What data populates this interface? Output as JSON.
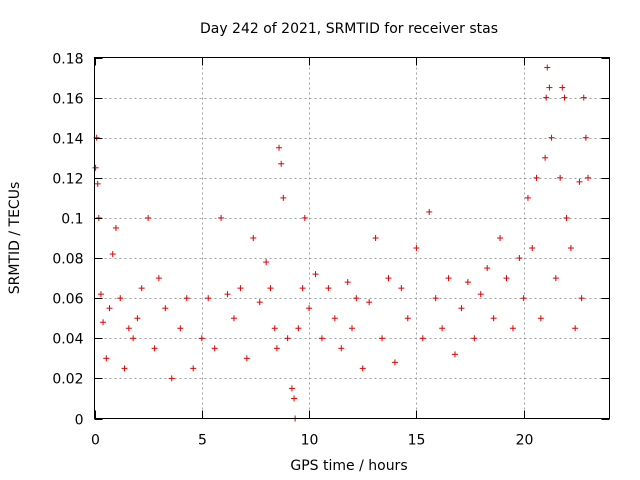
{
  "chart_data": {
    "type": "scatter",
    "title": "Day 242 of 2021, SRMTID for receiver stas",
    "xlabel": "GPS time / hours",
    "ylabel": "SRMTID / TECUs",
    "xlim": [
      0,
      24
    ],
    "ylim": [
      0,
      0.18
    ],
    "xticks": [
      0,
      5,
      10,
      15,
      20
    ],
    "xtick_labels": [
      "0",
      "5",
      "10",
      "15",
      "20"
    ],
    "yticks": [
      0,
      0.02,
      0.04,
      0.06,
      0.08,
      0.1,
      0.12,
      0.14,
      0.16,
      0.18
    ],
    "ytick_labels": [
      "0",
      "0.02",
      "0.04",
      "0.06",
      "0.08",
      "0.1",
      "0.12",
      "0.14",
      "0.16",
      "0.18"
    ],
    "grid": true,
    "marker": "+",
    "marker_color": "#e00000",
    "series": [
      {
        "name": "SRMTID",
        "x": [
          0.05,
          0.1,
          0.15,
          0.2,
          0.3,
          0.4,
          0.55,
          0.7,
          0.85,
          1.0,
          1.2,
          1.4,
          1.6,
          1.8,
          2.0,
          2.2,
          2.5,
          2.8,
          3.0,
          3.3,
          3.6,
          4.0,
          4.3,
          4.6,
          5.0,
          5.3,
          5.6,
          5.9,
          6.2,
          6.5,
          6.8,
          7.1,
          7.4,
          7.7,
          8.0,
          8.2,
          8.4,
          8.5,
          8.6,
          8.7,
          8.8,
          9.0,
          9.2,
          9.3,
          9.35,
          9.5,
          9.7,
          9.8,
          10.0,
          10.3,
          10.6,
          10.9,
          11.2,
          11.5,
          11.8,
          12.0,
          12.2,
          12.5,
          12.8,
          13.1,
          13.4,
          13.7,
          14.0,
          14.3,
          14.6,
          15.0,
          15.3,
          15.6,
          15.9,
          16.2,
          16.5,
          16.8,
          17.1,
          17.4,
          17.7,
          18.0,
          18.3,
          18.6,
          18.9,
          19.2,
          19.5,
          19.8,
          20.0,
          20.2,
          20.4,
          20.6,
          20.8,
          21.0,
          21.05,
          21.1,
          21.2,
          21.3,
          21.5,
          21.7,
          21.8,
          21.9,
          22.0,
          22.2,
          22.4,
          22.6,
          22.7,
          22.8,
          22.9,
          23.0
        ],
        "y": [
          0.125,
          0.14,
          0.117,
          0.1,
          0.062,
          0.048,
          0.03,
          0.055,
          0.082,
          0.095,
          0.06,
          0.025,
          0.045,
          0.04,
          0.05,
          0.065,
          0.1,
          0.035,
          0.07,
          0.055,
          0.02,
          0.045,
          0.06,
          0.025,
          0.04,
          0.06,
          0.035,
          0.1,
          0.062,
          0.05,
          0.065,
          0.03,
          0.09,
          0.058,
          0.078,
          0.065,
          0.045,
          0.035,
          0.135,
          0.127,
          0.11,
          0.04,
          0.015,
          0.01,
          0.0,
          0.045,
          0.065,
          0.1,
          0.055,
          0.072,
          0.04,
          0.065,
          0.05,
          0.035,
          0.068,
          0.045,
          0.06,
          0.025,
          0.058,
          0.09,
          0.04,
          0.07,
          0.028,
          0.065,
          0.05,
          0.085,
          0.04,
          0.103,
          0.06,
          0.045,
          0.07,
          0.032,
          0.055,
          0.068,
          0.04,
          0.062,
          0.075,
          0.05,
          0.09,
          0.07,
          0.045,
          0.08,
          0.06,
          0.11,
          0.085,
          0.12,
          0.05,
          0.13,
          0.16,
          0.175,
          0.165,
          0.14,
          0.07,
          0.12,
          0.165,
          0.16,
          0.1,
          0.085,
          0.045,
          0.118,
          0.06,
          0.16,
          0.14,
          0.12
        ]
      }
    ]
  }
}
